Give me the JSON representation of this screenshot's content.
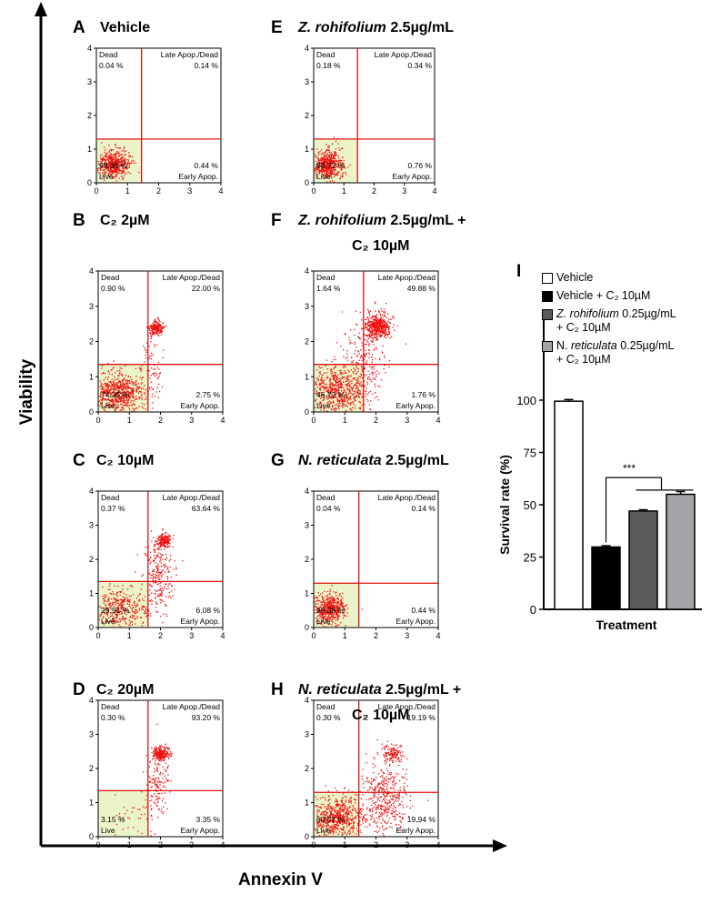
{
  "axes": {
    "y_label": "Viability",
    "x_label": "Annexin V"
  },
  "quadrant_labels": {
    "dead": "Dead",
    "late": "Late Apop./Dead",
    "live": "Live",
    "early": "Early Apop."
  },
  "panels": [
    {
      "letter": "A",
      "title": "Vehicle",
      "title_italic": "",
      "title2": "",
      "dead": "0.04 %",
      "late": "0.14 %",
      "live": "99.38 %",
      "early": "0.44 %"
    },
    {
      "letter": "B",
      "title": "C₂ 2µM",
      "title_italic": "",
      "title2": "",
      "dead": "0.90 %",
      "late": "22.00 %",
      "live": "74.35 %",
      "early": "2.75 %"
    },
    {
      "letter": "C",
      "title": "C₂ 10µM",
      "title_italic": "",
      "title2": "",
      "dead": "0.37 %",
      "late": "63.64 %",
      "live": "29.91 %",
      "early": "6.08 %"
    },
    {
      "letter": "D",
      "title": "C₂ 20µM",
      "title_italic": "",
      "title2": "",
      "dead": "0.30 %",
      "late": "93.20 %",
      "live": "3.15 %",
      "early": "3.35 %"
    },
    {
      "letter": "E",
      "title": " 2.5µg/mL",
      "title_italic": "Z. rohifolium",
      "title2": "",
      "dead": "0.18 %",
      "late": "0.34 %",
      "live": "98.72 %",
      "early": "0.76 %"
    },
    {
      "letter": "F",
      "title": " 2.5µg/mL +",
      "title_italic": "Z. rohifolium",
      "title2": "C₂ 10µM",
      "dead": "1.64 %",
      "late": "49.88 %",
      "live": "46.72 %",
      "early": "1.76 %"
    },
    {
      "letter": "G",
      "title": " 2.5µg/mL",
      "title_italic": "N. reticulata",
      "title2": "",
      "dead": "0.04 %",
      "late": "0.14 %",
      "live": "99.38 %",
      "early": "0.44 %"
    },
    {
      "letter": "H",
      "title": " 2.5µg/mL +",
      "title_italic": "N. reticulata",
      "title2": "C₂ 10µM",
      "dead": "0.30 %",
      "late": "19.19 %",
      "live": "60.57 %",
      "early": "19.94 %"
    }
  ],
  "bar_panel": {
    "letter": "I",
    "legend": [
      {
        "plain_before": "",
        "italic": "",
        "plain_after": "Vehicle",
        "line2": "",
        "color": "#ffffff"
      },
      {
        "plain_before": "",
        "italic": "",
        "plain_after": "Vehicle + C₂ 10µM",
        "line2": "",
        "color": "#000000"
      },
      {
        "plain_before": "",
        "italic": "Z. rohifolium",
        "plain_after": " 0.25µg/mL",
        "line2": "+ C₂ 10µM",
        "color": "#5a5a5a"
      },
      {
        "plain_before": "N. ",
        "italic": "reticulata",
        "plain_after": " 0.25µg/mL",
        "line2": "+ C₂ 10µM",
        "color": "#a3a3a8"
      }
    ],
    "significance": "***"
  },
  "chart_data": [
    {
      "type": "scatter",
      "description_kind": "flow cytometry quadrant plots (Annexin V vs Viability)",
      "xlim": [
        0,
        4
      ],
      "ylim": [
        0,
        4
      ],
      "xticks": [
        0,
        1,
        2,
        3,
        4
      ],
      "yticks": [
        0,
        1,
        2,
        3,
        4
      ],
      "quadrant_percentages": [
        {
          "panel": "A",
          "dead": 0.04,
          "late": 0.14,
          "live": 99.38,
          "early": 0.44
        },
        {
          "panel": "B",
          "dead": 0.9,
          "late": 22.0,
          "live": 74.35,
          "early": 2.75
        },
        {
          "panel": "C",
          "dead": 0.37,
          "late": 63.64,
          "live": 29.91,
          "early": 6.08
        },
        {
          "panel": "D",
          "dead": 0.3,
          "late": 93.2,
          "live": 3.15,
          "early": 3.35
        },
        {
          "panel": "E",
          "dead": 0.18,
          "late": 0.34,
          "live": 98.72,
          "early": 0.76
        },
        {
          "panel": "F",
          "dead": 1.64,
          "late": 49.88,
          "live": 46.72,
          "early": 1.76
        },
        {
          "panel": "G",
          "dead": 0.04,
          "late": 0.14,
          "live": 99.38,
          "early": 0.44
        },
        {
          "panel": "H",
          "dead": 0.3,
          "late": 19.19,
          "live": 60.57,
          "early": 19.94
        }
      ],
      "gates": [
        {
          "panel": "A",
          "x": 1.45,
          "y": 1.3
        },
        {
          "panel": "B",
          "x": 1.6,
          "y": 1.35
        },
        {
          "panel": "C",
          "x": 1.6,
          "y": 1.35
        },
        {
          "panel": "D",
          "x": 1.6,
          "y": 1.35
        },
        {
          "panel": "E",
          "x": 1.45,
          "y": 1.3
        },
        {
          "panel": "F",
          "x": 1.6,
          "y": 1.35
        },
        {
          "panel": "G",
          "x": 1.45,
          "y": 1.3
        },
        {
          "panel": "H",
          "x": 1.45,
          "y": 1.3
        }
      ]
    },
    {
      "type": "bar",
      "title": "",
      "xlabel": "Treatment",
      "ylabel": "Survival rate (%)",
      "ylim": [
        0,
        100
      ],
      "yticks": [
        0,
        25,
        50,
        75,
        100
      ],
      "categories": [
        "Vehicle",
        "Vehicle + C2 10µM",
        "Z. rohifolium 0.25µg/mL + C2 10µM",
        "N. reticulata 0.25µg/mL + C2 10µM"
      ],
      "values": [
        99.5,
        29.8,
        47.0,
        55.0
      ],
      "errors": [
        0.8,
        0.6,
        0.6,
        1.3
      ],
      "colors": [
        "#ffffff",
        "#000000",
        "#5a5a5a",
        "#a3a3a8"
      ]
    }
  ]
}
